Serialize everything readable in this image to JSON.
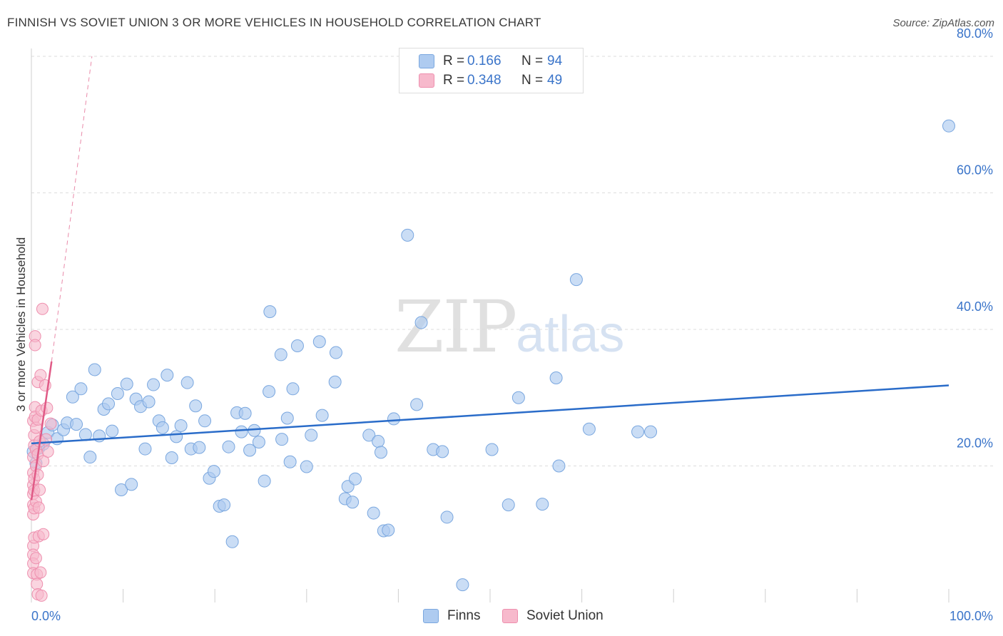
{
  "title": "FINNISH VS SOVIET UNION 3 OR MORE VEHICLES IN HOUSEHOLD CORRELATION CHART",
  "source": "Source: ZipAtlas.com",
  "legend": {
    "rows": [
      {
        "r_label": "R =",
        "r_value": "0.166",
        "n_label": "N =",
        "n_value": "94",
        "color": "#aecbf0"
      },
      {
        "r_label": "R =",
        "r_value": "0.348",
        "n_label": "N =",
        "n_value": "49",
        "color": "#f7b9cc"
      }
    ]
  },
  "bottom_legend": {
    "finns": "Finns",
    "soviet": "Soviet Union"
  },
  "watermark": {
    "zip": "ZIP",
    "atlas": "atlas"
  },
  "colors": {
    "finns_fill": "#aecbf0",
    "finns_stroke": "#7aa7df",
    "finns_line": "#2a6cc9",
    "soviet_fill": "#f7b9cc",
    "soviet_stroke": "#ee8fae",
    "soviet_line": "#e05a86",
    "tick_text": "#3a74c9",
    "grid": "#dcdcdc"
  },
  "chart_data": {
    "type": "scatter",
    "title": "FINNISH VS SOVIET UNION 3 OR MORE VEHICLES IN HOUSEHOLD CORRELATION CHART",
    "xlabel": "",
    "ylabel": "3 or more Vehicles in Household",
    "xlim": [
      0,
      100
    ],
    "ylim": [
      0,
      80
    ],
    "x_tick_labels": [
      "0.0%",
      "100.0%"
    ],
    "y_ticks": [
      20,
      40,
      60,
      80
    ],
    "y_tick_labels": [
      "20.0%",
      "40.0%",
      "60.0%",
      "80.0%"
    ],
    "grid": true,
    "legend_position": "top-center",
    "series": [
      {
        "name": "Finns",
        "points": [
          [
            0.2,
            22.1
          ],
          [
            0.5,
            20.4
          ],
          [
            0.8,
            22.6
          ],
          [
            1.3,
            23.2
          ],
          [
            1.8,
            24.9
          ],
          [
            2.3,
            26.0
          ],
          [
            2.8,
            24.0
          ],
          [
            3.5,
            25.3
          ],
          [
            3.9,
            26.3
          ],
          [
            4.5,
            30.1
          ],
          [
            4.9,
            26.1
          ],
          [
            5.4,
            31.3
          ],
          [
            5.9,
            24.6
          ],
          [
            6.4,
            21.3
          ],
          [
            6.9,
            34.1
          ],
          [
            7.4,
            24.4
          ],
          [
            7.9,
            28.3
          ],
          [
            8.4,
            29.1
          ],
          [
            8.8,
            25.1
          ],
          [
            9.4,
            30.6
          ],
          [
            9.8,
            16.5
          ],
          [
            10.4,
            32.0
          ],
          [
            10.9,
            17.3
          ],
          [
            11.4,
            29.8
          ],
          [
            11.9,
            28.7
          ],
          [
            12.4,
            22.5
          ],
          [
            12.8,
            29.4
          ],
          [
            13.3,
            31.9
          ],
          [
            13.9,
            26.6
          ],
          [
            14.3,
            25.6
          ],
          [
            14.8,
            33.3
          ],
          [
            15.3,
            21.2
          ],
          [
            15.8,
            24.3
          ],
          [
            16.3,
            25.9
          ],
          [
            17.0,
            32.2
          ],
          [
            17.4,
            22.5
          ],
          [
            17.9,
            28.8
          ],
          [
            18.3,
            22.7
          ],
          [
            18.9,
            26.6
          ],
          [
            19.4,
            18.2
          ],
          [
            19.9,
            19.2
          ],
          [
            20.5,
            14.1
          ],
          [
            21.0,
            14.3
          ],
          [
            21.5,
            22.8
          ],
          [
            21.9,
            8.9
          ],
          [
            22.4,
            27.8
          ],
          [
            22.9,
            25.0
          ],
          [
            23.3,
            27.7
          ],
          [
            23.8,
            22.3
          ],
          [
            24.3,
            25.2
          ],
          [
            24.8,
            23.5
          ],
          [
            25.4,
            17.8
          ],
          [
            25.9,
            30.9
          ],
          [
            26.0,
            42.6
          ],
          [
            27.2,
            36.3
          ],
          [
            27.3,
            23.9
          ],
          [
            27.9,
            27.0
          ],
          [
            28.2,
            20.6
          ],
          [
            28.5,
            31.3
          ],
          [
            29.0,
            37.6
          ],
          [
            30.0,
            19.9
          ],
          [
            30.5,
            24.5
          ],
          [
            31.4,
            38.2
          ],
          [
            31.7,
            27.4
          ],
          [
            33.1,
            32.3
          ],
          [
            33.2,
            36.6
          ],
          [
            34.2,
            15.2
          ],
          [
            34.5,
            17.0
          ],
          [
            35.0,
            14.7
          ],
          [
            35.3,
            18.1
          ],
          [
            36.8,
            24.5
          ],
          [
            37.3,
            13.1
          ],
          [
            37.8,
            23.6
          ],
          [
            38.1,
            22.0
          ],
          [
            38.4,
            10.5
          ],
          [
            38.9,
            10.6
          ],
          [
            39.5,
            26.9
          ],
          [
            41.0,
            53.8
          ],
          [
            42.0,
            29.0
          ],
          [
            42.5,
            41.0
          ],
          [
            43.8,
            22.4
          ],
          [
            44.8,
            22.1
          ],
          [
            45.3,
            12.5
          ],
          [
            47.0,
            2.6
          ],
          [
            50.2,
            22.4
          ],
          [
            52.0,
            14.3
          ],
          [
            53.1,
            30.0
          ],
          [
            55.7,
            14.4
          ],
          [
            57.2,
            32.9
          ],
          [
            57.5,
            20.0
          ],
          [
            59.4,
            47.3
          ],
          [
            60.8,
            25.4
          ],
          [
            66.1,
            25.0
          ],
          [
            67.5,
            25.0
          ],
          [
            100.0,
            69.8
          ]
        ],
        "trend": {
          "x": [
            0,
            100
          ],
          "y": [
            23.3,
            31.8
          ]
        }
      },
      {
        "name": "Soviet Union",
        "points": [
          [
            0.2,
            26.6
          ],
          [
            0.2,
            21.3
          ],
          [
            0.2,
            19.0
          ],
          [
            0.2,
            17.2
          ],
          [
            0.2,
            15.9
          ],
          [
            0.2,
            14.3
          ],
          [
            0.2,
            12.9
          ],
          [
            0.2,
            8.3
          ],
          [
            0.2,
            7.0
          ],
          [
            0.2,
            5.7
          ],
          [
            0.2,
            4.3
          ],
          [
            0.3,
            24.5
          ],
          [
            0.3,
            23.0
          ],
          [
            0.3,
            18.1
          ],
          [
            0.3,
            16.4
          ],
          [
            0.3,
            13.8
          ],
          [
            0.3,
            9.5
          ],
          [
            0.4,
            39.0
          ],
          [
            0.4,
            37.7
          ],
          [
            0.4,
            28.6
          ],
          [
            0.4,
            27.2
          ],
          [
            0.5,
            25.6
          ],
          [
            0.5,
            22.4
          ],
          [
            0.5,
            20.0
          ],
          [
            0.5,
            14.8
          ],
          [
            0.5,
            6.5
          ],
          [
            0.6,
            4.1
          ],
          [
            0.6,
            2.7
          ],
          [
            0.7,
            32.3
          ],
          [
            0.7,
            26.8
          ],
          [
            0.7,
            21.7
          ],
          [
            0.7,
            18.7
          ],
          [
            0.7,
            1.2
          ],
          [
            0.8,
            13.9
          ],
          [
            0.8,
            9.7
          ],
          [
            0.9,
            23.6
          ],
          [
            0.9,
            16.5
          ],
          [
            1.0,
            33.3
          ],
          [
            1.0,
            4.4
          ],
          [
            1.1,
            28.1
          ],
          [
            1.1,
            1.0
          ],
          [
            1.2,
            43.0
          ],
          [
            1.3,
            10.0
          ],
          [
            1.3,
            20.7
          ],
          [
            1.5,
            31.8
          ],
          [
            1.6,
            23.9
          ],
          [
            1.7,
            28.5
          ],
          [
            1.8,
            22.1
          ],
          [
            2.1,
            26.2
          ]
        ],
        "trend": {
          "x": [
            0,
            2.2
          ],
          "y": [
            15.0,
            35.3
          ]
        },
        "trend_extension": {
          "x": [
            2.2,
            6.6
          ],
          "y": [
            35.3,
            80.0
          ]
        }
      }
    ]
  }
}
